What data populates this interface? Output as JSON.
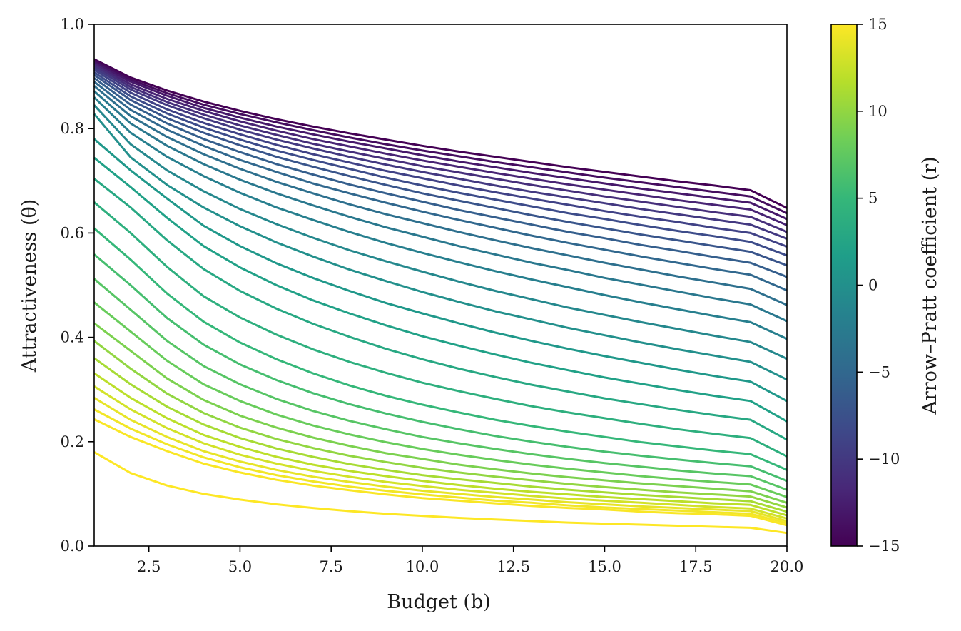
{
  "chart_data": {
    "type": "line",
    "xlabel": "Budget (b)",
    "ylabel": "Attractiveness (θ)",
    "xlim": [
      1,
      20
    ],
    "ylim": [
      0,
      1
    ],
    "xticks": [
      "2.5",
      "5.0",
      "7.5",
      "10.0",
      "12.5",
      "15.0",
      "17.5",
      "20.0"
    ],
    "yticks": [
      "0.0",
      "0.2",
      "0.4",
      "0.6",
      "0.8",
      "1.0"
    ],
    "grid": false,
    "x": [
      1,
      2,
      3,
      4,
      5,
      6,
      7,
      8,
      9,
      10,
      11,
      12,
      13,
      14,
      15,
      16,
      17,
      18,
      19,
      20
    ],
    "series": [
      {
        "r": -15,
        "values": [
          0.933,
          0.898,
          0.873,
          0.852,
          0.834,
          0.818,
          0.804,
          0.791,
          0.779,
          0.767,
          0.756,
          0.746,
          0.736,
          0.726,
          0.717,
          0.708,
          0.699,
          0.691,
          0.682,
          0.648
        ]
      },
      {
        "r": -14,
        "values": [
          0.93,
          0.894,
          0.868,
          0.846,
          0.828,
          0.812,
          0.797,
          0.783,
          0.77,
          0.758,
          0.747,
          0.736,
          0.726,
          0.716,
          0.706,
          0.697,
          0.688,
          0.679,
          0.67,
          0.638
        ]
      },
      {
        "r": -13,
        "values": [
          0.927,
          0.89,
          0.863,
          0.84,
          0.821,
          0.804,
          0.789,
          0.775,
          0.762,
          0.749,
          0.737,
          0.726,
          0.715,
          0.705,
          0.695,
          0.685,
          0.676,
          0.667,
          0.658,
          0.627
        ]
      },
      {
        "r": -12,
        "values": [
          0.924,
          0.885,
          0.857,
          0.834,
          0.814,
          0.796,
          0.78,
          0.766,
          0.752,
          0.739,
          0.727,
          0.715,
          0.704,
          0.693,
          0.683,
          0.673,
          0.663,
          0.654,
          0.645,
          0.615
        ]
      },
      {
        "r": -11,
        "values": [
          0.921,
          0.88,
          0.851,
          0.827,
          0.806,
          0.788,
          0.771,
          0.756,
          0.742,
          0.728,
          0.716,
          0.704,
          0.692,
          0.681,
          0.67,
          0.66,
          0.65,
          0.64,
          0.631,
          0.602
        ]
      },
      {
        "r": -10,
        "values": [
          0.917,
          0.875,
          0.845,
          0.82,
          0.798,
          0.779,
          0.762,
          0.746,
          0.731,
          0.717,
          0.704,
          0.691,
          0.679,
          0.668,
          0.657,
          0.646,
          0.636,
          0.626,
          0.616,
          0.589
        ]
      },
      {
        "r": -9,
        "values": [
          0.913,
          0.869,
          0.837,
          0.811,
          0.789,
          0.769,
          0.751,
          0.735,
          0.719,
          0.705,
          0.691,
          0.678,
          0.666,
          0.654,
          0.642,
          0.631,
          0.621,
          0.61,
          0.6,
          0.574
        ]
      },
      {
        "r": -8,
        "values": [
          0.908,
          0.862,
          0.829,
          0.802,
          0.779,
          0.758,
          0.74,
          0.723,
          0.706,
          0.691,
          0.677,
          0.664,
          0.651,
          0.638,
          0.627,
          0.615,
          0.604,
          0.594,
          0.583,
          0.557
        ]
      },
      {
        "r": -7,
        "values": [
          0.903,
          0.855,
          0.82,
          0.792,
          0.768,
          0.746,
          0.727,
          0.709,
          0.692,
          0.676,
          0.662,
          0.648,
          0.634,
          0.621,
          0.609,
          0.597,
          0.586,
          0.575,
          0.564,
          0.538
        ]
      },
      {
        "r": -6,
        "values": [
          0.897,
          0.846,
          0.81,
          0.78,
          0.755,
          0.732,
          0.712,
          0.693,
          0.676,
          0.66,
          0.644,
          0.63,
          0.616,
          0.602,
          0.59,
          0.577,
          0.566,
          0.554,
          0.543,
          0.516
        ]
      },
      {
        "r": -5,
        "values": [
          0.89,
          0.836,
          0.798,
          0.767,
          0.74,
          0.717,
          0.695,
          0.676,
          0.658,
          0.641,
          0.625,
          0.61,
          0.595,
          0.581,
          0.568,
          0.555,
          0.543,
          0.531,
          0.52,
          0.49
        ]
      },
      {
        "r": -4,
        "values": [
          0.882,
          0.824,
          0.784,
          0.751,
          0.723,
          0.698,
          0.676,
          0.655,
          0.636,
          0.619,
          0.602,
          0.586,
          0.571,
          0.557,
          0.543,
          0.53,
          0.517,
          0.505,
          0.493,
          0.462
        ]
      },
      {
        "r": -3,
        "values": [
          0.872,
          0.81,
          0.767,
          0.732,
          0.702,
          0.676,
          0.653,
          0.631,
          0.611,
          0.593,
          0.575,
          0.559,
          0.543,
          0.529,
          0.514,
          0.501,
          0.488,
          0.475,
          0.463,
          0.431
        ]
      },
      {
        "r": -2,
        "values": [
          0.86,
          0.792,
          0.746,
          0.709,
          0.677,
          0.649,
          0.625,
          0.602,
          0.581,
          0.562,
          0.544,
          0.527,
          0.511,
          0.496,
          0.481,
          0.467,
          0.454,
          0.441,
          0.429,
          0.397
        ]
      },
      {
        "r": -1,
        "values": [
          0.845,
          0.77,
          0.72,
          0.68,
          0.646,
          0.617,
          0.591,
          0.567,
          0.546,
          0.526,
          0.507,
          0.489,
          0.473,
          0.457,
          0.443,
          0.429,
          0.416,
          0.403,
          0.391,
          0.359
        ]
      },
      {
        "r": 0,
        "values": [
          0.828,
          0.745,
          0.692,
          0.649,
          0.613,
          0.582,
          0.555,
          0.53,
          0.508,
          0.487,
          0.468,
          0.45,
          0.434,
          0.418,
          0.404,
          0.39,
          0.377,
          0.365,
          0.353,
          0.319
        ]
      },
      {
        "r": 1,
        "values": [
          0.78,
          0.72,
          0.666,
          0.614,
          0.575,
          0.542,
          0.514,
          0.489,
          0.466,
          0.446,
          0.427,
          0.409,
          0.393,
          0.378,
          0.364,
          0.351,
          0.338,
          0.326,
          0.315,
          0.278
        ]
      },
      {
        "r": 2,
        "values": [
          0.744,
          0.688,
          0.629,
          0.575,
          0.534,
          0.5,
          0.471,
          0.446,
          0.423,
          0.402,
          0.384,
          0.367,
          0.351,
          0.337,
          0.323,
          0.311,
          0.299,
          0.288,
          0.278,
          0.239
        ]
      },
      {
        "r": 3,
        "values": [
          0.704,
          0.649,
          0.586,
          0.531,
          0.489,
          0.455,
          0.426,
          0.401,
          0.378,
          0.358,
          0.34,
          0.324,
          0.309,
          0.296,
          0.283,
          0.272,
          0.261,
          0.251,
          0.242,
          0.204
        ]
      },
      {
        "r": 4,
        "values": [
          0.659,
          0.6,
          0.535,
          0.479,
          0.438,
          0.405,
          0.377,
          0.353,
          0.332,
          0.313,
          0.297,
          0.282,
          0.268,
          0.256,
          0.245,
          0.234,
          0.224,
          0.215,
          0.207,
          0.172
        ]
      },
      {
        "r": 5,
        "values": [
          0.609,
          0.549,
          0.484,
          0.43,
          0.39,
          0.358,
          0.331,
          0.308,
          0.288,
          0.271,
          0.256,
          0.242,
          0.23,
          0.219,
          0.209,
          0.199,
          0.191,
          0.183,
          0.176,
          0.146
        ]
      },
      {
        "r": 6,
        "values": [
          0.559,
          0.5,
          0.437,
          0.386,
          0.348,
          0.318,
          0.293,
          0.272,
          0.254,
          0.238,
          0.224,
          0.211,
          0.2,
          0.19,
          0.181,
          0.173,
          0.166,
          0.159,
          0.153,
          0.125
        ]
      },
      {
        "r": 7,
        "values": [
          0.512,
          0.453,
          0.393,
          0.345,
          0.31,
          0.282,
          0.259,
          0.24,
          0.224,
          0.209,
          0.197,
          0.186,
          0.176,
          0.167,
          0.159,
          0.152,
          0.145,
          0.139,
          0.134,
          0.108
        ]
      },
      {
        "r": 8,
        "values": [
          0.467,
          0.411,
          0.355,
          0.31,
          0.278,
          0.252,
          0.231,
          0.214,
          0.199,
          0.186,
          0.175,
          0.165,
          0.156,
          0.148,
          0.141,
          0.134,
          0.128,
          0.123,
          0.118,
          0.094
        ]
      },
      {
        "r": 9,
        "values": [
          0.427,
          0.374,
          0.321,
          0.28,
          0.25,
          0.227,
          0.208,
          0.192,
          0.178,
          0.167,
          0.156,
          0.147,
          0.139,
          0.132,
          0.126,
          0.12,
          0.115,
          0.11,
          0.105,
          0.083
        ]
      },
      {
        "r": 10,
        "values": [
          0.393,
          0.34,
          0.292,
          0.255,
          0.227,
          0.205,
          0.188,
          0.173,
          0.161,
          0.15,
          0.141,
          0.133,
          0.126,
          0.119,
          0.113,
          0.108,
          0.103,
          0.099,
          0.095,
          0.074
        ]
      },
      {
        "r": 11,
        "values": [
          0.36,
          0.31,
          0.267,
          0.233,
          0.207,
          0.187,
          0.171,
          0.157,
          0.146,
          0.136,
          0.128,
          0.121,
          0.114,
          0.108,
          0.103,
          0.098,
          0.094,
          0.09,
          0.086,
          0.066
        ]
      },
      {
        "r": 12,
        "values": [
          0.331,
          0.284,
          0.245,
          0.213,
          0.19,
          0.171,
          0.156,
          0.144,
          0.134,
          0.125,
          0.117,
          0.11,
          0.104,
          0.099,
          0.094,
          0.09,
          0.086,
          0.082,
          0.079,
          0.059
        ]
      },
      {
        "r": 13,
        "values": [
          0.306,
          0.262,
          0.226,
          0.197,
          0.175,
          0.158,
          0.144,
          0.133,
          0.123,
          0.115,
          0.108,
          0.102,
          0.096,
          0.091,
          0.087,
          0.083,
          0.079,
          0.075,
          0.072,
          0.053
        ]
      },
      {
        "r": 14,
        "values": [
          0.284,
          0.242,
          0.209,
          0.182,
          0.162,
          0.146,
          0.133,
          0.123,
          0.114,
          0.106,
          0.1,
          0.094,
          0.089,
          0.084,
          0.08,
          0.076,
          0.073,
          0.07,
          0.067,
          0.048
        ]
      },
      {
        "r": 14.5,
        "values": [
          0.262,
          0.225,
          0.195,
          0.17,
          0.151,
          0.136,
          0.124,
          0.114,
          0.106,
          0.099,
          0.093,
          0.087,
          0.083,
          0.078,
          0.074,
          0.071,
          0.068,
          0.065,
          0.062,
          0.044
        ]
      },
      {
        "r": 14.8,
        "values": [
          0.243,
          0.209,
          0.182,
          0.158,
          0.141,
          0.127,
          0.116,
          0.107,
          0.099,
          0.092,
          0.087,
          0.082,
          0.077,
          0.073,
          0.07,
          0.066,
          0.063,
          0.061,
          0.058,
          0.04
        ]
      },
      {
        "r": 15,
        "values": [
          0.18,
          0.14,
          0.116,
          0.1,
          0.089,
          0.08,
          0.073,
          0.067,
          0.062,
          0.058,
          0.054,
          0.051,
          0.048,
          0.045,
          0.043,
          0.041,
          0.039,
          0.037,
          0.035,
          0.025
        ]
      }
    ],
    "colorbar": {
      "label": "Arrow–Pratt coefficient (r)",
      "range": [
        -15,
        15
      ],
      "ticks": [
        "−15",
        "−10",
        "−5",
        "0",
        "5",
        "10",
        "15"
      ],
      "colormap": "viridis",
      "stops": [
        "#440154",
        "#482878",
        "#3e4989",
        "#31688e",
        "#26828e",
        "#1f9e89",
        "#35b779",
        "#6ece58",
        "#b5de2b",
        "#fde725"
      ]
    }
  }
}
